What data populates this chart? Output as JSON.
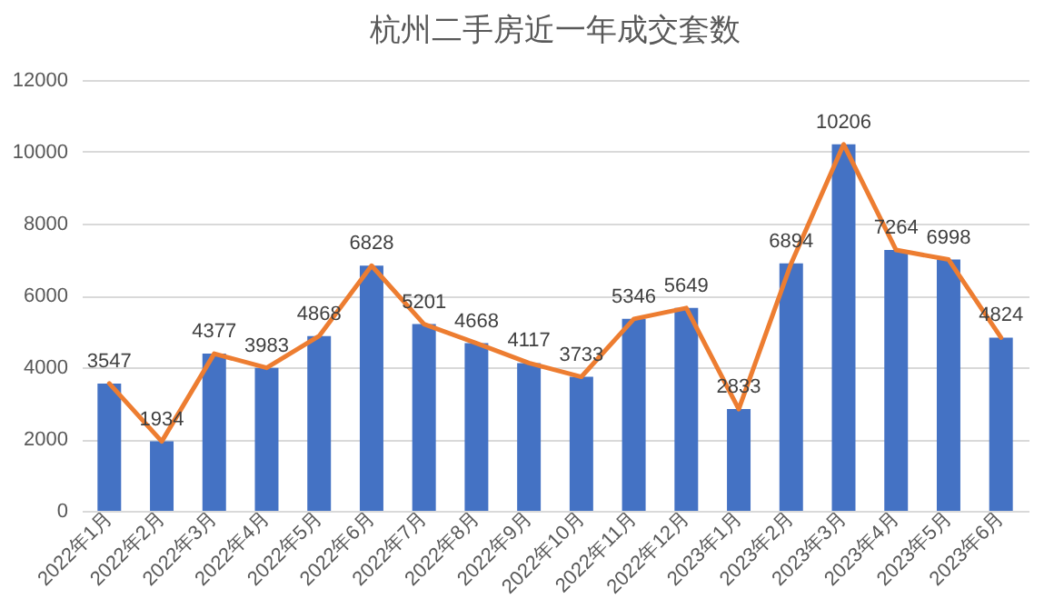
{
  "chart_data": {
    "type": "bar",
    "title": "杭州二手房近一年成交套数",
    "categories": [
      "2022年1月",
      "2022年2月",
      "2022年3月",
      "2022年4月",
      "2022年5月",
      "2022年6月",
      "2022年7月",
      "2022年8月",
      "2022年9月",
      "2022年10月",
      "2022年11月",
      "2022年12月",
      "2023年1月",
      "2023年2月",
      "2023年3月",
      "2023年4月",
      "2023年5月",
      "2023年6月"
    ],
    "series": [
      {
        "color": "#4472c4",
        "values": [
          3547,
          1934,
          4377,
          3983,
          4868,
          6828,
          5201,
          4668,
          4117,
          3733,
          5346,
          5649,
          2833,
          6894,
          10206,
          7264,
          6998,
          4824
        ],
        "value_labels": [
          "3547",
          "1934",
          "4377",
          "3983",
          "4868",
          "6828",
          "5201",
          "4668",
          "4117",
          "3733",
          "5346",
          "5649",
          "2833",
          "6894",
          "10206",
          "7264",
          "6998",
          "4824"
        ]
      },
      {
        "type": "line",
        "color": "#ed7d31",
        "values": [
          3547,
          1934,
          4377,
          3983,
          4868,
          6828,
          5201,
          4668,
          4117,
          3733,
          5346,
          5649,
          2833,
          6894,
          10206,
          7264,
          6998,
          4824
        ]
      }
    ],
    "ylim": [
      0,
      12000
    ],
    "yticks": [
      0,
      2000,
      4000,
      6000,
      8000,
      10000,
      12000
    ],
    "grid": "y",
    "marker": "none",
    "line_style": "solid"
  }
}
